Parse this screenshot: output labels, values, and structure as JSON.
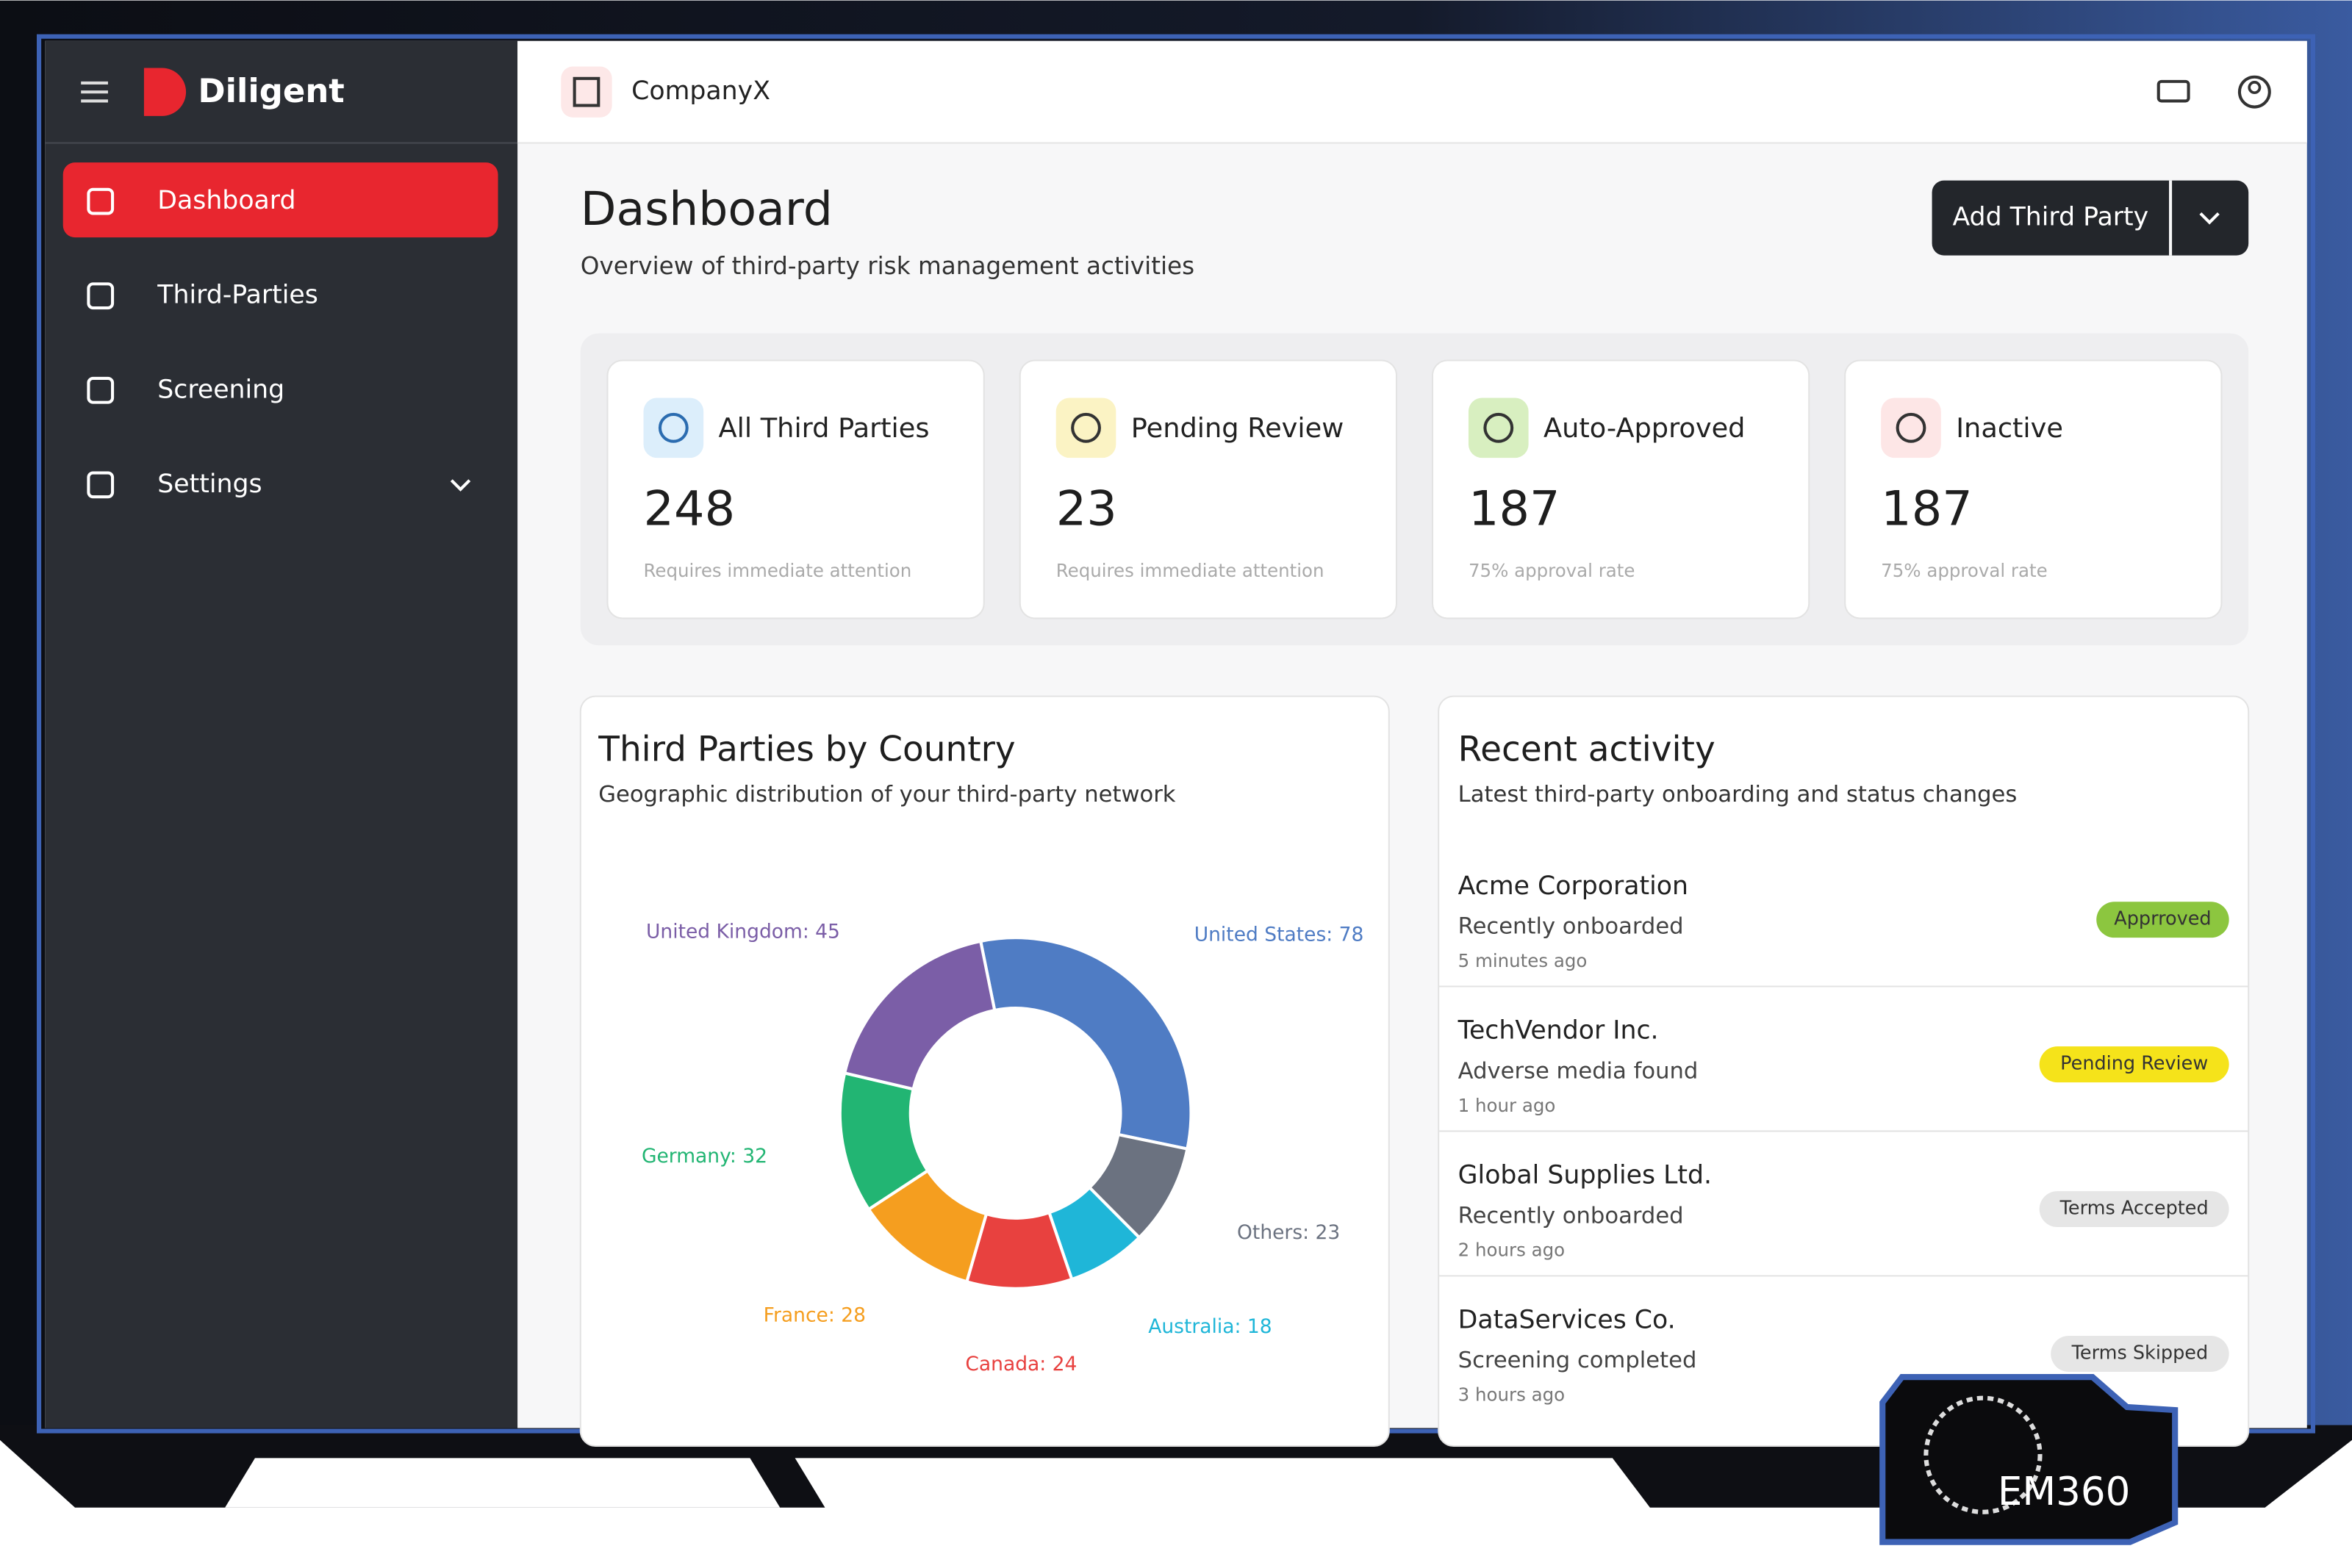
{
  "sidebar": {
    "brand": "Diligent",
    "nav": [
      "Dashboard",
      "Third-Parties",
      "Screening",
      "Settings"
    ]
  },
  "header": {
    "company": "CompanyX"
  },
  "page": {
    "title": "Dashboard",
    "subtitle": "Overview of third-party risk management activities",
    "button": "Add Third Party"
  },
  "stats": [
    {
      "label": "All Third Parties",
      "value": 248,
      "note": "Requires immediate attention"
    },
    {
      "label": "Pending Review",
      "value": 23,
      "note": "Requires immediate attention"
    },
    {
      "label": "Auto-Approved",
      "value": 187,
      "note": "75% approval rate"
    },
    {
      "label": "Inactive",
      "value": 187,
      "note": "75% approval rate"
    }
  ],
  "chart_data": {
    "type": "pie",
    "donut": true,
    "title": "Third Parties by Country",
    "subtitle": "Geographic distribution of your third-party network",
    "values": [
      78,
      23,
      18,
      24,
      28,
      32,
      45
    ],
    "value_labels": [
      "United States: 78",
      "Others: 23",
      "Australia: 18",
      "Canada: 24",
      "France: 28",
      "Germany: 32",
      "United Kingdom: 45"
    ],
    "colors": [
      "#4f7cc4",
      "#6b7280",
      "#1fb6d8",
      "#e8413f",
      "#f59e1f",
      "#22b573",
      "#7b5ea7"
    ]
  },
  "activity": {
    "title": "Recent activity",
    "subtitle": "Latest third-party onboarding and status changes",
    "items": [
      {
        "name": "Acme Corporation",
        "detail": "Recently onboarded",
        "time": "5 minutes ago",
        "status": "Apprroved",
        "color": "#8cc63f"
      },
      {
        "name": "TechVendor Inc.",
        "detail": "Adverse media found",
        "time": "1 hour ago",
        "status": "Pending Review",
        "color": "#f5e31a"
      },
      {
        "name": "Global Supplies Ltd.",
        "detail": "Recently onboarded",
        "time": "2 hours ago",
        "status": "Terms Accepted",
        "color": "#e6e6e6"
      },
      {
        "name": "DataServices Co.",
        "detail": "Screening completed",
        "time": "3 hours ago",
        "status": "Terms Skipped",
        "color": "#e6e6e6"
      }
    ]
  },
  "watermark": "EM360"
}
